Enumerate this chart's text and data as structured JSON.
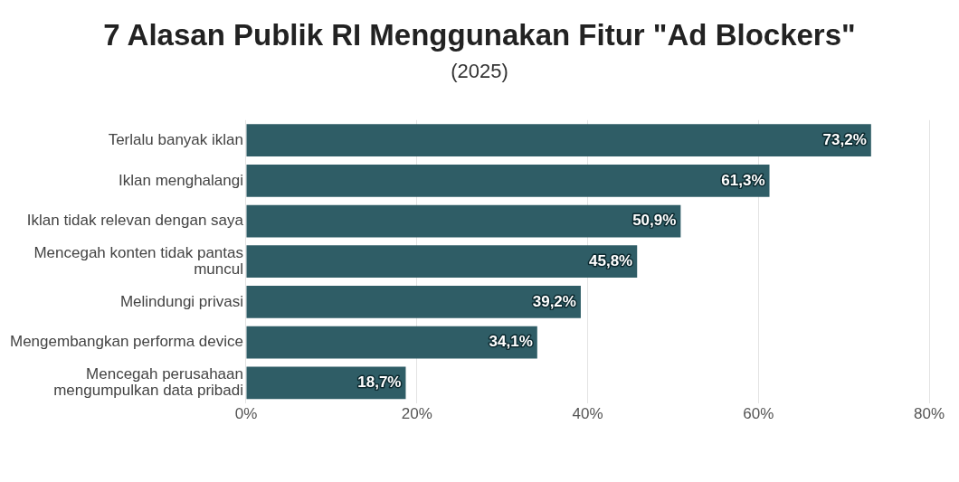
{
  "chart_data": {
    "type": "bar",
    "orientation": "horizontal",
    "title": "7 Alasan Publik RI Menggunakan Fitur \"Ad Blockers\"",
    "subtitle": "(2025)",
    "categories": [
      "Terlalu banyak iklan",
      "Iklan menghalangi",
      "Iklan tidak relevan dengan saya",
      "Mencegah konten tidak pantas muncul",
      "Melindungi privasi",
      "Mengembangkan performa device",
      "Mencegah perusahaan mengumpulkan data pribadi"
    ],
    "values": [
      73.2,
      61.3,
      50.9,
      45.8,
      39.2,
      34.1,
      18.7
    ],
    "value_labels": [
      "73,2%",
      "61,3%",
      "50,9%",
      "45,8%",
      "39,2%",
      "34,1%",
      "18,7%"
    ],
    "color": "#2f5d66",
    "xlim": [
      0,
      80
    ],
    "xticks": [
      {
        "value": 0,
        "label": "0%"
      },
      {
        "value": 20,
        "label": "20%"
      },
      {
        "value": 40,
        "label": "40%"
      },
      {
        "value": 60,
        "label": "60%"
      },
      {
        "value": 80,
        "label": "80%"
      }
    ],
    "grid": "x",
    "legend": false
  }
}
